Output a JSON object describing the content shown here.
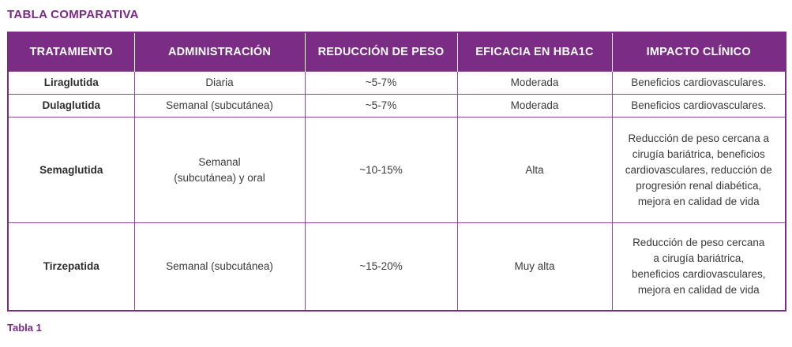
{
  "title": "TABLA COMPARATIVA",
  "caption": "Tabla 1",
  "table": {
    "headers": [
      "TRATAMIENTO",
      "ADMINISTRACIÓN",
      "REDUCCIÓN DE PESO",
      "EFICACIA EN HBA1C",
      "IMPACTO CLÍNICO"
    ],
    "rows": [
      {
        "tratamiento": "Liraglutida",
        "administracion": "Diaria",
        "reduccion": "~5-7%",
        "eficacia": "Moderada",
        "impacto": "Beneficios cardiovasculares."
      },
      {
        "tratamiento": "Dulaglutida",
        "administracion": "Semanal (subcutánea)",
        "reduccion": "~5-7%",
        "eficacia": "Moderada",
        "impacto": "Beneficios cardiovasculares."
      },
      {
        "tratamiento": "Semaglutida",
        "administracion": "Semanal (subcutánea) y oral",
        "reduccion": "~10-15%",
        "eficacia": "Alta",
        "impacto": "Reducción de peso cercana a cirugía bariátrica, beneficios cardiovasculares, reducción de progresión renal diabética, mejora en calidad de vida"
      },
      {
        "tratamiento": "Tirzepatida",
        "administracion": "Semanal (subcutánea)",
        "reduccion": "~15-20%",
        "eficacia": "Muy alta",
        "impacto": "Reducción de peso cercana a cirugía bariátrica, beneficios cardiovasculares, mejora en calidad de vida"
      }
    ]
  },
  "colors": {
    "accent": "#7b2d86",
    "header_text": "#ffffff",
    "body_text": "#3a3a3a"
  }
}
